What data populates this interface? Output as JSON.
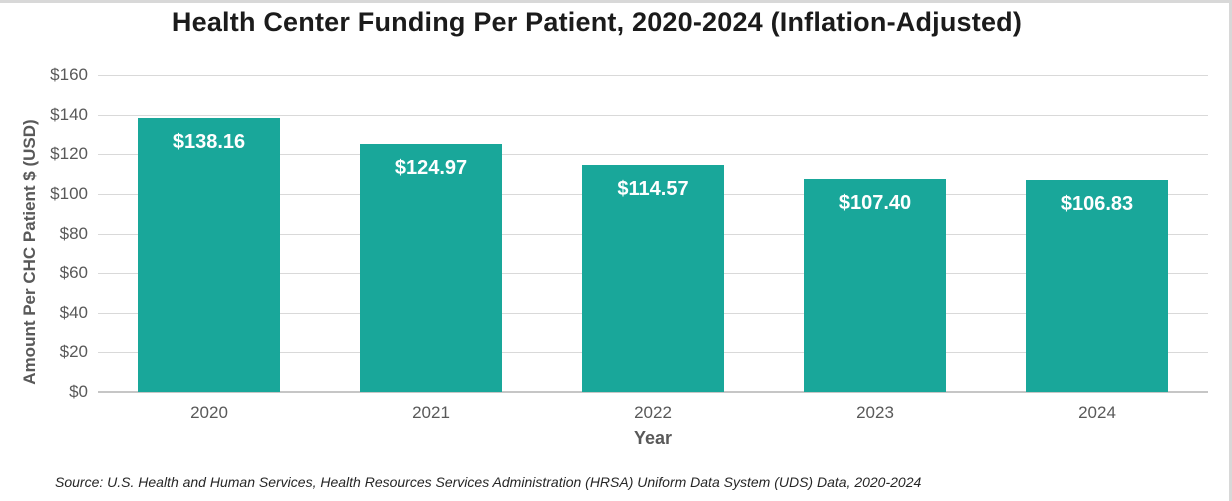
{
  "title": "Health Center Funding Per Patient, 2020-2024 (Inflation-Adjusted)",
  "source_note": "Source: U.S. Health and Human Services, Health Resources Services Administration (HRSA) Uniform Data System (UDS) Data, 2020-2024",
  "colors": {
    "bar": "#19a79a",
    "bar_label_text": "#ffffff",
    "gridline": "#d9d9d9",
    "zero_axis": "#c6c6c6",
    "axis_text": "#595959",
    "title_text": "#1b1b1b",
    "frame_edge": "#d8d8d8"
  },
  "chart_data": {
    "type": "bar",
    "title": "Health Center Funding Per Patient, 2020-2024 (Inflation-Adjusted)",
    "categories": [
      "2020",
      "2021",
      "2022",
      "2023",
      "2024"
    ],
    "values": [
      138.16,
      124.97,
      114.57,
      107.4,
      106.83
    ],
    "bar_labels": [
      "$138.16",
      "$124.97",
      "$114.57",
      "$107.40",
      "$106.83"
    ],
    "xlabel": "Year",
    "ylabel": "Amount Per CHC Patient $ (USD)",
    "ylim": [
      0,
      160
    ],
    "ytick_step": 20,
    "ytick_labels": [
      "$0",
      "$20",
      "$40",
      "$60",
      "$80",
      "$100",
      "$120",
      "$140",
      "$160"
    ],
    "grid": true,
    "legend": "none",
    "annotation": "Source: U.S. Health and Human Services, Health Resources Services Administration (HRSA) Uniform Data System (UDS) Data, 2020-2024"
  }
}
